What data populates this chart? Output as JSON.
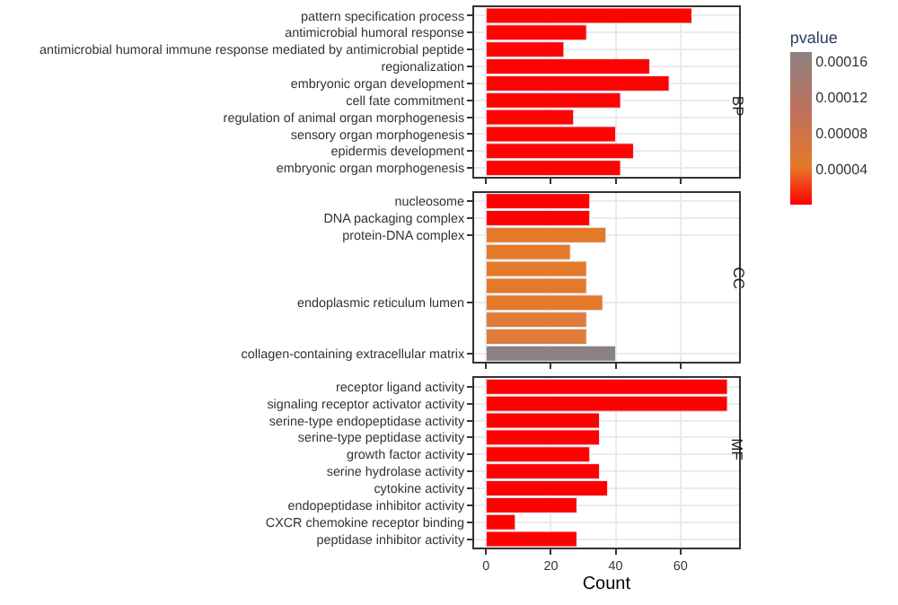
{
  "chart_data": [
    {
      "type": "bar",
      "orientation": "horizontal",
      "title": "BP",
      "grid": true,
      "tick_labels": "y",
      "categories": [
        "pattern specification process",
        "antimicrobial humoral response",
        "antimicrobial humoral immune response mediated by antimicrobial peptide",
        "regionalization",
        "embryonic organ development",
        "cell fate commitment",
        "regulation of animal organ morphogenesis",
        "sensory organ morphogenesis",
        "epidermis development",
        "embryonic organ morphogenesis"
      ],
      "values": [
        63.5,
        31,
        24,
        50.5,
        56.5,
        41.5,
        27,
        40,
        45.5,
        41.5
      ],
      "cvalues": [
        1e-06,
        1e-06,
        1e-06,
        1e-06,
        1e-06,
        1e-06,
        1e-06,
        1e-06,
        1e-06,
        1e-06
      ],
      "clabel": "pvalue",
      "clim": [
        0,
        0.00017
      ],
      "cticks": [
        {
          "value": 4e-05,
          "label": "0.00004"
        },
        {
          "value": 8e-05,
          "label": "0.00008"
        },
        {
          "value": 0.00012,
          "label": "0.00012"
        },
        {
          "value": 0.00016,
          "label": "0.00016"
        }
      ],
      "xlim": [
        -3.7,
        78
      ],
      "xticks": [
        0,
        20,
        40,
        60
      ]
    },
    {
      "type": "bar",
      "orientation": "horizontal",
      "title": "CC",
      "grid": true,
      "tick_labels": "y",
      "categories": [
        "nucleosome",
        "DNA packaging complex",
        "protein-DNA complex",
        null,
        null,
        null,
        "endoplasmic reticulum lumen",
        null,
        null,
        "collagen-containing extracellular matrix"
      ],
      "values": [
        32,
        32,
        37,
        26,
        31,
        31,
        36,
        31,
        31,
        40
      ],
      "colors": [
        "#ff0000",
        "#ff0000",
        "#e5792a",
        "#e5792a",
        "#e5792a",
        "#e5792a",
        "#e5792a",
        "#e07b3a",
        "#e07b3a",
        "#8c8080"
      ],
      "xlim": [
        -3.7,
        78
      ],
      "xticks": [
        0,
        20,
        40,
        60
      ]
    },
    {
      "type": "bar",
      "orientation": "horizontal",
      "title": "MF",
      "grid": true,
      "xlabel": "Count",
      "categories": [
        "receptor ligand activity",
        "signaling receptor activator activity",
        "serine-type endopeptidase activity",
        "serine-type peptidase activity",
        "growth factor activity",
        "serine hydrolase activity",
        "cytokine activity",
        "endopeptidase inhibitor activity",
        "CXCR chemokine receptor binding",
        "peptidase inhibitor activity"
      ],
      "values": [
        74.5,
        74.5,
        35,
        35,
        32,
        35,
        37.5,
        28,
        9,
        28
      ],
      "colors": [
        "#ff0000",
        "#ff0000",
        "#ff0000",
        "#ff0000",
        "#ff0000",
        "#ff0000",
        "#ff0000",
        "#ff0000",
        "#ff0000",
        "#ff0000"
      ],
      "xlim": [
        -3.7,
        78
      ],
      "xticks": [
        0,
        20,
        40,
        60
      ]
    }
  ]
}
